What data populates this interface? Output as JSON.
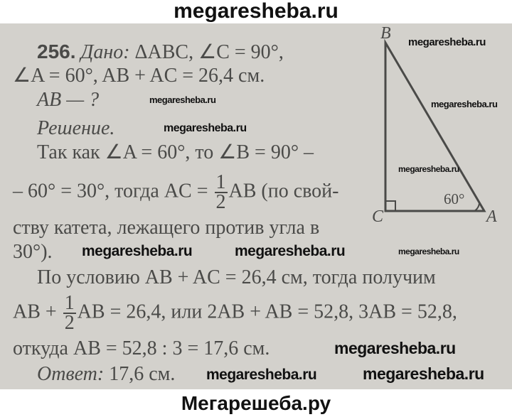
{
  "header": {
    "site": "megaresheba.ru"
  },
  "footer": {
    "site": "Мегарешеба.ру"
  },
  "problem": {
    "number": "256.",
    "given_label": "Дано:",
    "given_1": " ΔABC, ∠C = 90°,",
    "given_2": "∠A = 60°, AB + AC = 26,4 см.",
    "find": "AB — ?",
    "solution_label": "Решение.",
    "line1": "Так как ∠A = 60°, то ∠B = 90° –",
    "line2a": "– 60° = 30°, тогда AC = ",
    "frac_num": "1",
    "frac_den": "2",
    "line2b": "AB (по свой-",
    "line3": "ству катета, лежащего против угла в",
    "line4": "30°).",
    "line5": "По условию AB + AC = 26,4 см, тогда получим",
    "line6a": "AB + ",
    "line6b": "AB = 26,4, или 2AB + AB = 52,8, 3AB = 52,8,",
    "line7": "откуда AB = 52,8 : 3 = 17,6 см.",
    "answer_label": "Ответ:",
    "answer": " 17,6 см."
  },
  "figure": {
    "vertex_b": "B",
    "vertex_c": "C",
    "vertex_a": "A",
    "angle_label": "60°"
  },
  "watermark": "megaresheba.ru"
}
